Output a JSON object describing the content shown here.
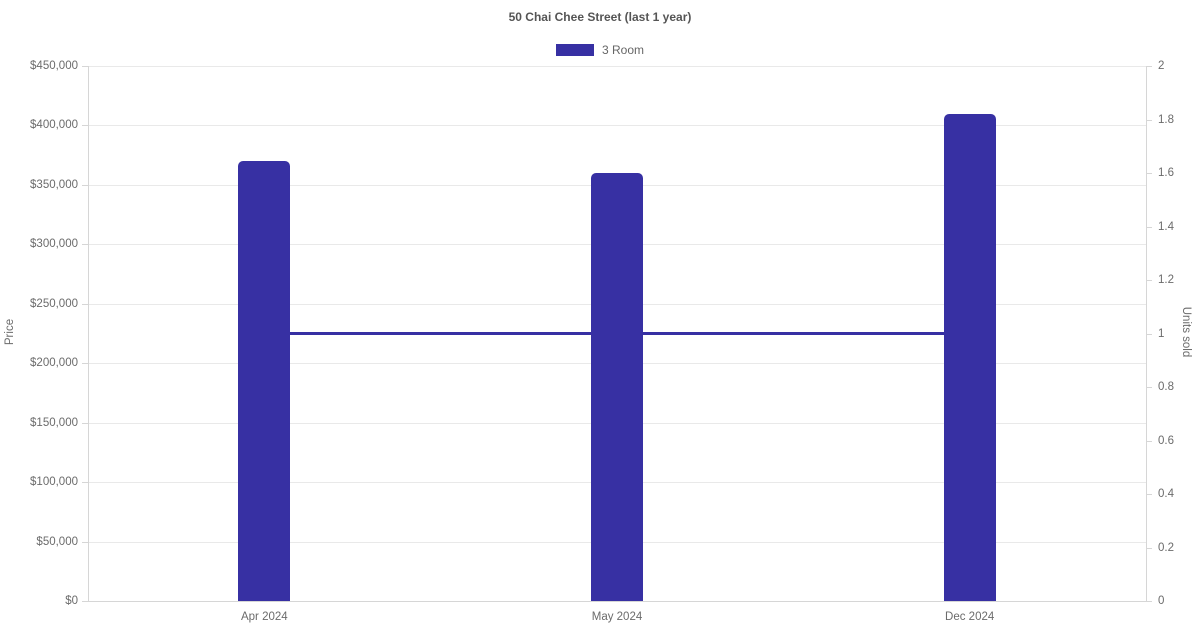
{
  "chart_data": {
    "type": "bar",
    "title": "50 Chai Chee Street (last 1 year)",
    "categories": [
      "Apr 2024",
      "May 2024",
      "Dec 2024"
    ],
    "series": [
      {
        "name": "3 Room",
        "type": "bar",
        "axis": "left",
        "values": [
          370000,
          360000,
          410000
        ]
      },
      {
        "name": "3 Room",
        "type": "line",
        "axis": "right",
        "values": [
          1,
          1,
          1
        ]
      }
    ],
    "legend": {
      "position": "top",
      "items": [
        {
          "label": "3 Room",
          "color": "#3730a3"
        }
      ]
    },
    "axes": {
      "left": {
        "title": "Price",
        "min": 0,
        "max": 450000,
        "tick_labels": [
          "$450,000",
          "$400,000",
          "$350,000",
          "$300,000",
          "$250,000",
          "$200,000",
          "$150,000",
          "$100,000",
          "$50,000",
          "$0"
        ]
      },
      "right": {
        "title": "Units sold",
        "min": 0,
        "max": 2,
        "tick_labels": [
          "2",
          "1.8",
          "1.6",
          "1.4",
          "1.2",
          "1",
          "0.8",
          "0.6",
          "0.4",
          "0.2",
          "0"
        ]
      }
    },
    "grid": "horizontal-only",
    "colors": {
      "bar": "#3730a3",
      "line": "#3730a3",
      "grid": "#e9e9e9",
      "axis": "#d6d6d6",
      "text": "#6b6b6b",
      "title": "#555555"
    }
  }
}
